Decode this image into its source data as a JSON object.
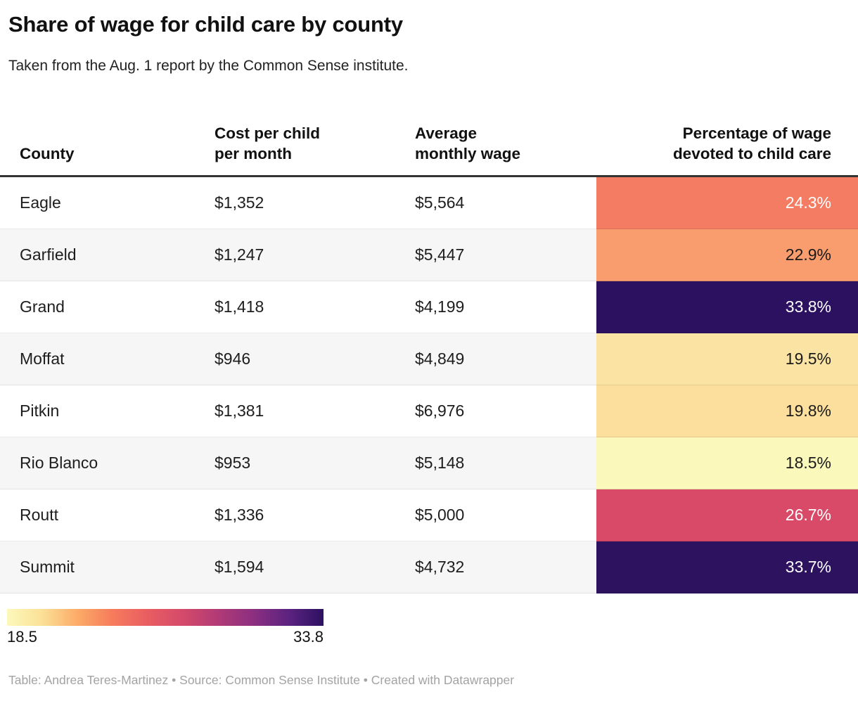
{
  "header": {
    "title": "Share of wage for child care by county",
    "subtitle": "Taken from the Aug. 1 report by the Common Sense institute."
  },
  "table": {
    "columns": [
      "County",
      "Cost per child\nper month",
      "Average\nmonthly wage",
      "Percentage of wage\ndevoted to child care"
    ],
    "rows": [
      {
        "county": "Eagle",
        "cost": "$1,352",
        "wage": "$5,564",
        "pct": "24.3%",
        "pct_bg": "#f37c62",
        "pct_text": "#ffffff"
      },
      {
        "county": "Garfield",
        "cost": "$1,247",
        "wage": "$5,447",
        "pct": "22.9%",
        "pct_bg": "#fa9d6e",
        "pct_text": "#1a1a1a"
      },
      {
        "county": "Grand",
        "cost": "$1,418",
        "wage": "$4,199",
        "pct": "33.8%",
        "pct_bg": "#2c1160",
        "pct_text": "#ffffff"
      },
      {
        "county": "Moffat",
        "cost": "$946",
        "wage": "$4,849",
        "pct": "19.5%",
        "pct_bg": "#fbe4a3",
        "pct_text": "#1a1a1a"
      },
      {
        "county": "Pitkin",
        "cost": "$1,381",
        "wage": "$6,976",
        "pct": "19.8%",
        "pct_bg": "#fcdf9d",
        "pct_text": "#1a1a1a"
      },
      {
        "county": "Rio Blanco",
        "cost": "$953",
        "wage": "$5,148",
        "pct": "18.5%",
        "pct_bg": "#faf8ba",
        "pct_text": "#1a1a1a"
      },
      {
        "county": "Routt",
        "cost": "$1,336",
        "wage": "$5,000",
        "pct": "26.7%",
        "pct_bg": "#d84a68",
        "pct_text": "#ffffff"
      },
      {
        "county": "Summit",
        "cost": "$1,594",
        "wage": "$4,732",
        "pct": "33.7%",
        "pct_bg": "#2d1260",
        "pct_text": "#ffffff"
      }
    ]
  },
  "legend": {
    "min_label": "18.5",
    "max_label": "33.8",
    "gradient_stops": [
      "#fcf9bb",
      "#fbe097",
      "#fcab67",
      "#f67b5c",
      "#e95d62",
      "#d44a6a",
      "#b13a76",
      "#8c2f80",
      "#5c2380",
      "#2d1160"
    ]
  },
  "footer": {
    "credit": "Table: Andrea Teres-Martinez • Source: Common Sense Institute • Created with Datawrapper"
  },
  "chart_data": {
    "type": "table",
    "title": "Share of wage for child care by county",
    "subtitle": "Taken from the Aug. 1 report by the Common Sense institute.",
    "columns": [
      "County",
      "Cost per child per month",
      "Average monthly wage",
      "Percentage of wage devoted to child care"
    ],
    "rows": [
      {
        "county": "Eagle",
        "cost_per_child_per_month": 1352,
        "average_monthly_wage": 5564,
        "pct_of_wage": 24.3
      },
      {
        "county": "Garfield",
        "cost_per_child_per_month": 1247,
        "average_monthly_wage": 5447,
        "pct_of_wage": 22.9
      },
      {
        "county": "Grand",
        "cost_per_child_per_month": 1418,
        "average_monthly_wage": 4199,
        "pct_of_wage": 33.8
      },
      {
        "county": "Moffat",
        "cost_per_child_per_month": 946,
        "average_monthly_wage": 4849,
        "pct_of_wage": 19.5
      },
      {
        "county": "Pitkin",
        "cost_per_child_per_month": 1381,
        "average_monthly_wage": 6976,
        "pct_of_wage": 19.8
      },
      {
        "county": "Rio Blanco",
        "cost_per_child_per_month": 953,
        "average_monthly_wage": 5148,
        "pct_of_wage": 18.5
      },
      {
        "county": "Routt",
        "cost_per_child_per_month": 1336,
        "average_monthly_wage": 5000,
        "pct_of_wage": 26.7
      },
      {
        "county": "Summit",
        "cost_per_child_per_month": 1594,
        "average_monthly_wage": 4732,
        "pct_of_wage": 33.7
      }
    ],
    "color_scale": {
      "column": "Percentage of wage devoted to child care",
      "min": 18.5,
      "max": 33.8,
      "palette": "yellow-orange-red-purple (magma reversed)"
    },
    "legend_position": "bottom-left"
  }
}
